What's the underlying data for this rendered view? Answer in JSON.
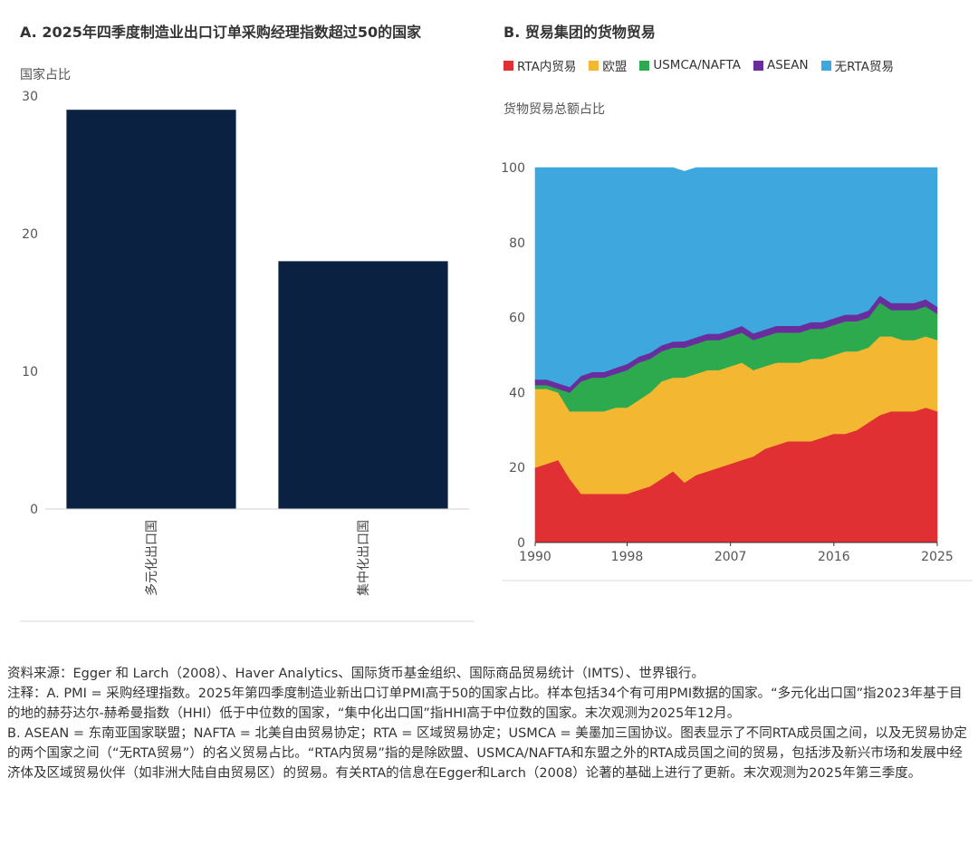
{
  "panel_a": {
    "title": "A. 2025年四季度制造业出口订单采购经理指数超过50的国家",
    "ylabel": "国家占比"
  },
  "panel_b": {
    "title": "B. 贸易集团的货物贸易",
    "ylabel": "货物贸易总额占比"
  },
  "notes": {
    "source": "资料来源：Egger 和 Larch（2008）、Haver Analytics、国际货币基金组织、国际商品贸易统计（IMTS）、世界银行。",
    "note_a": "注释：A. PMI = 采购经理指数。2025年第四季度制造业新出口订单PMI高于50的国家占比。样本包括34个有可用PMI数据的国家。“多元化出口国”指2023年基于目的地的赫芬达尔-赫希曼指数（HHI）低于中位数的国家，“集中化出口国”指HHI高于中位数的国家。末次观测为2025年12月。",
    "note_b": "B. ASEAN = 东南亚国家联盟；NAFTA = 北美自由贸易协定；RTA = 区域贸易协定；USMCA = 美墨加三国协议。图表显示了不同RTA成员国之间，以及无贸易协定的两个国家之间（“无RTA贸易”）的名义贸易占比。“RTA内贸易”指的是除欧盟、USMCA/NAFTA和东盟之外的RTA成员国之间的贸易，包括涉及新兴市场和发展中经济体及区域贸易伙伴（如非洲大陆自由贸易区）的贸易。有关RTA的信息在Egger和Larch（2008）论著的基础上进行了更新。末次观测为2025年第三季度。"
  },
  "chart_data": [
    {
      "type": "bar",
      "title": "A. 2025年四季度制造业出口订单采购经理指数超过50的国家",
      "ylabel": "国家占比",
      "categories": [
        "多元化出口国",
        "集中化出口国"
      ],
      "values": [
        29,
        18
      ],
      "ylim": [
        0,
        30
      ],
      "yticks": [
        0,
        10,
        20,
        30
      ],
      "colors": {
        "bar": "#0b2142"
      }
    },
    {
      "type": "area",
      "stacked": true,
      "title": "B. 贸易集团的货物贸易",
      "ylabel": "货物贸易总额占比",
      "ylim": [
        0,
        100
      ],
      "yticks": [
        0,
        20,
        40,
        60,
        80,
        100
      ],
      "xticks": [
        1990,
        1998,
        2007,
        2016,
        2025
      ],
      "xlim": [
        1990,
        2025
      ],
      "x": [
        1990,
        1991,
        1992,
        1993,
        1994,
        1995,
        1996,
        1997,
        1998,
        1999,
        2000,
        2001,
        2002,
        2003,
        2004,
        2005,
        2006,
        2007,
        2008,
        2009,
        2010,
        2011,
        2012,
        2013,
        2014,
        2015,
        2016,
        2017,
        2018,
        2019,
        2020,
        2021,
        2022,
        2023,
        2024,
        2025
      ],
      "series": [
        {
          "name": "RTA内贸易",
          "color": "#e03033",
          "values": [
            20,
            21,
            22,
            17,
            13,
            13,
            13,
            13,
            13,
            14,
            15,
            17,
            19,
            16,
            18,
            19,
            20,
            21,
            22,
            23,
            25,
            26,
            27,
            27,
            27,
            28,
            29,
            29,
            30,
            32,
            34,
            35,
            35,
            35,
            36,
            35
          ]
        },
        {
          "name": "欧盟",
          "color": "#f4b731",
          "values": [
            21,
            20,
            18,
            18,
            22,
            22,
            22,
            23,
            23,
            24,
            25,
            26,
            25,
            28,
            27,
            27,
            26,
            26,
            26,
            23,
            22,
            22,
            21,
            21,
            22,
            21,
            21,
            22,
            21,
            20,
            21,
            20,
            19,
            19,
            19,
            19
          ]
        },
        {
          "name": "USMCA/NAFTA",
          "color": "#2eaa4e",
          "values": [
            1,
            1,
            1,
            5,
            8,
            9,
            9,
            9,
            10,
            10,
            9,
            8,
            8,
            8,
            8,
            8,
            8,
            8,
            8,
            8,
            8,
            8,
            8,
            8,
            8,
            8,
            8,
            8,
            8,
            8,
            9,
            7,
            8,
            8,
            8,
            7
          ]
        },
        {
          "name": "ASEAN",
          "color": "#6a2d9e",
          "values": [
            1.5,
            1.5,
            1.5,
            1.5,
            1.5,
            1.5,
            1.5,
            1.6,
            1.6,
            1.6,
            1.6,
            1.6,
            1.6,
            1.7,
            1.7,
            1.7,
            1.7,
            1.7,
            1.8,
            1.8,
            1.8,
            1.8,
            1.8,
            1.8,
            1.8,
            1.8,
            1.8,
            1.8,
            1.8,
            1.9,
            1.9,
            1.9,
            1.9,
            1.9,
            1.9,
            1.9
          ]
        },
        {
          "name": "无RTA贸易",
          "color": "#3ea8de",
          "values": [
            56.5,
            56.5,
            57.5,
            58.5,
            55.5,
            54.5,
            54.5,
            53.4,
            52.4,
            50.4,
            49.4,
            47.4,
            46.4,
            45.3,
            45.3,
            44.3,
            44.3,
            43.3,
            42.2,
            44.2,
            43.2,
            42.2,
            42.2,
            42.2,
            41.2,
            41.2,
            40.2,
            39.2,
            39.2,
            38.1,
            34.1,
            36.1,
            36.1,
            36.1,
            35.1,
            37.1
          ]
        }
      ]
    }
  ]
}
